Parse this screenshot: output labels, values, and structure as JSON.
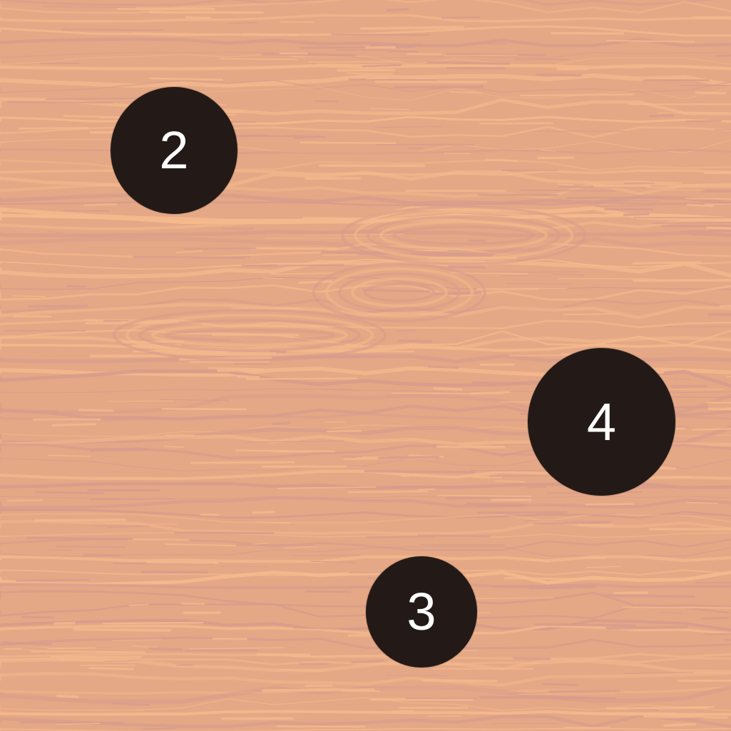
{
  "board": {
    "texture": "wood-grain",
    "colors": {
      "wood_base": "#e5a886",
      "grain_light": "#f4b98c",
      "grain_dark": "#d79c8c",
      "token_fill": "#231a17",
      "token_text": "#ffffff"
    }
  },
  "tokens": [
    {
      "label": "2"
    },
    {
      "label": "4"
    },
    {
      "label": "3"
    }
  ]
}
